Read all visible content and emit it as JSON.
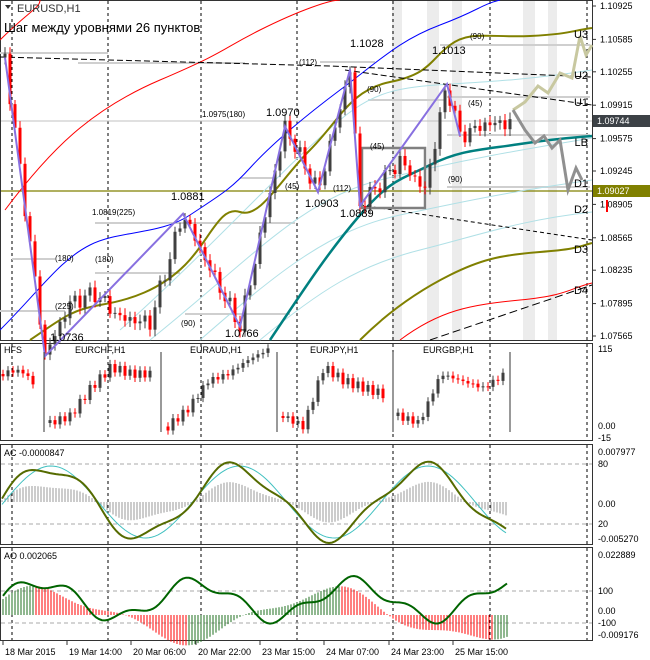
{
  "window": {
    "symbol_title": "EURUSD,H1",
    "subtitle": "Шаг между уровнями 26 пунктов"
  },
  "colors": {
    "bull": "#404040",
    "bear": "#ff0000",
    "grid": "#000000",
    "level_line": "#808000",
    "current_price_bg": "#3c4146",
    "level_price_bg": "#808000"
  },
  "main": {
    "pivot_labels": [
      {
        "text": "1.1028"
      },
      {
        "text": "1.1013"
      },
      {
        "text": "1.0975(180)"
      },
      {
        "text": "1.0970"
      },
      {
        "text": "1.0881"
      },
      {
        "text": "1.0819(225)"
      },
      {
        "text": "1.0903"
      },
      {
        "text": "1.0889"
      },
      {
        "text": "1.0766"
      },
      {
        "text": "1.0736"
      }
    ],
    "period_labels": [
      "(112)",
      "(90)",
      "(45)",
      "(45)",
      "(45)",
      "(112)",
      "(90)",
      "(90)",
      "(180)",
      "(180)",
      "(225)",
      "(90)"
    ],
    "levels": [
      "U3",
      "U2",
      "U1",
      "LB",
      "D1",
      "D2",
      "D3",
      "D4"
    ],
    "price_axis": [
      "1.10925",
      "1.10585",
      "1.10255",
      "1.09915",
      "1.09575",
      "1.09245",
      "1.08905",
      "1.08565",
      "1.08235",
      "1.07895",
      "1.07565"
    ],
    "current_price": "1.09744",
    "level_price": "1.09027",
    "pivots": [
      [
        5,
        1.104
      ],
      [
        45,
        1.0736
      ],
      [
        70,
        1.079
      ],
      [
        95,
        1.08
      ],
      [
        120,
        1.0775
      ],
      [
        150,
        1.077
      ],
      [
        183,
        1.0881
      ],
      [
        205,
        1.0835
      ],
      [
        240,
        1.0766
      ],
      [
        285,
        1.097
      ],
      [
        318,
        1.0903
      ],
      [
        350,
        1.1028
      ],
      [
        360,
        1.0889
      ],
      [
        400,
        1.0935
      ],
      [
        425,
        1.0905
      ],
      [
        447,
        1.1013
      ],
      [
        460,
        1.096
      ],
      [
        485,
        1.0972
      ],
      [
        510,
        1.0974
      ]
    ]
  },
  "hfs": {
    "label": "HFS",
    "pairs": [
      "EURCHF,H1",
      "EURAUD,H1",
      "EURJPY,H1",
      "EURGBP,H1"
    ],
    "axis": [
      "115",
      "0.00",
      "-15"
    ]
  },
  "ac": {
    "label": "AC -0.0000847",
    "axis": [
      "0.007977",
      "80",
      "0.00",
      "20",
      "-0.005270"
    ]
  },
  "ao": {
    "label": "AO 0.002065",
    "axis": [
      "0.022889",
      "100",
      "0.00",
      "-100",
      "-0.009176"
    ]
  },
  "time_axis": [
    "18 Mar 2015",
    "19 Mar 14:00",
    "20 Mar 06:00",
    "20 Mar 22:00",
    "23 Mar 15:00",
    "24 Mar 07:00",
    "24 Mar 23:00",
    "25 Mar 15:00"
  ]
}
